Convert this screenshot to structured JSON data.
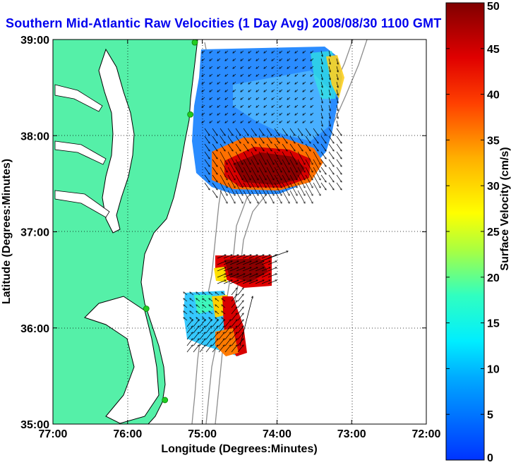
{
  "title": "Southern Mid-Atlantic Raw Velocities (1 Day Avg) 2008/08/30 1100 GMT",
  "chart_data": {
    "type": "heatmap",
    "xlabel": "Longitude (Degrees:Minutes)",
    "ylabel": "Latitude (Degrees:Minutes)",
    "xlim": [
      -77,
      -72
    ],
    "ylim": [
      35,
      39
    ],
    "x_ticks": [
      {
        "value": -77,
        "label": "77:00"
      },
      {
        "value": -76,
        "label": "76:00"
      },
      {
        "value": -75,
        "label": "75:00"
      },
      {
        "value": -74,
        "label": "74:00"
      },
      {
        "value": -73,
        "label": "73:00"
      },
      {
        "value": -72,
        "label": "72:00"
      }
    ],
    "y_ticks": [
      {
        "value": 35,
        "label": "35:00"
      },
      {
        "value": 36,
        "label": "36:00"
      },
      {
        "value": 37,
        "label": "37:00"
      },
      {
        "value": 38,
        "label": "38:00"
      },
      {
        "value": 39,
        "label": "39:00"
      }
    ],
    "grid": true,
    "colorbar": {
      "label": "Surface Velocity (cm/s)",
      "min": 0,
      "max": 50,
      "ticks": [
        0,
        5,
        10,
        15,
        20,
        25,
        30,
        35,
        40,
        45,
        50
      ]
    },
    "colors": {
      "land": "#55f0a8",
      "coastline": "#000000",
      "isobath": "#8c8c8c",
      "station": "#22cc22",
      "arrow": "#000000"
    },
    "stations": [
      {
        "lon": -75.1,
        "lat": 38.97
      },
      {
        "lon": -75.16,
        "lat": 38.22
      },
      {
        "lon": -75.75,
        "lat": 36.2
      },
      {
        "lon": -75.5,
        "lat": 35.25
      }
    ]
  }
}
